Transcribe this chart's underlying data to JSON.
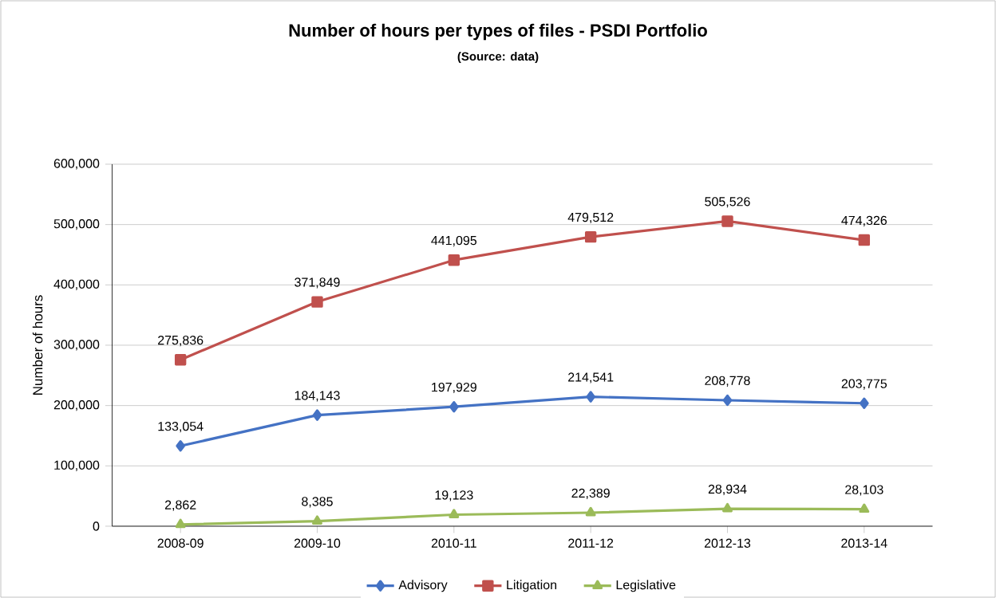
{
  "chart_data": {
    "type": "line",
    "title": "Number of hours per types of files - PSDI Portfolio",
    "subtitle": "(Source: data)",
    "ylabel": "Number  of hours",
    "categories": [
      "2008-09",
      "2009-10",
      "2010-11",
      "2011-12",
      "2012-13",
      "2013-14"
    ],
    "series": [
      {
        "name": "Advisory",
        "color": "#4472c4",
        "marker": "diamond",
        "values": [
          133054,
          184143,
          197929,
          214541,
          208778,
          203775
        ],
        "value_labels": [
          "133,054",
          "184,143",
          "197,929",
          "214,541",
          "208,778",
          "203,775"
        ]
      },
      {
        "name": "Litigation",
        "color": "#c0504d",
        "marker": "square",
        "values": [
          275836,
          371849,
          441095,
          479512,
          505526,
          474326
        ],
        "value_labels": [
          "275,836",
          "371,849",
          "441,095",
          "479,512",
          "505,526",
          "474,326"
        ]
      },
      {
        "name": "Legislative",
        "color": "#9bbb59",
        "marker": "triangle",
        "values": [
          2862,
          8385,
          19123,
          22389,
          28934,
          28103
        ],
        "value_labels": [
          "2,862",
          "8,385",
          "19,123",
          "22,389",
          "28,934",
          "28,103"
        ]
      }
    ],
    "ylim": [
      0,
      600000
    ],
    "yticks": [
      {
        "value": 0,
        "label": "0"
      },
      {
        "value": 100000,
        "label": "100,000"
      },
      {
        "value": 200000,
        "label": "200,000"
      },
      {
        "value": 300000,
        "label": "300,000"
      },
      {
        "value": 400000,
        "label": "400,000"
      },
      {
        "value": 500000,
        "label": "500,000"
      },
      {
        "value": 600000,
        "label": "600,000"
      }
    ],
    "grid": "y",
    "legend": "bottom",
    "data_labels": true,
    "line_style": "solid"
  }
}
